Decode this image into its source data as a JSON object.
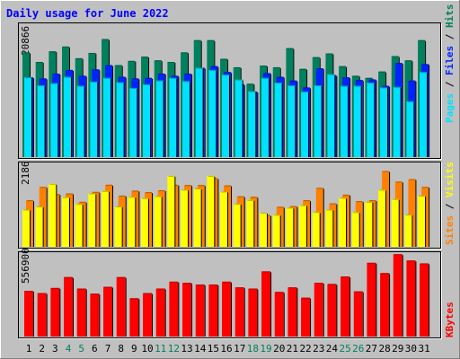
{
  "chart_data": [
    {
      "type": "bar",
      "title": "Daily usage for June 2022",
      "categories": [
        "1",
        "2",
        "3",
        "4",
        "5",
        "6",
        "7",
        "8",
        "9",
        "10",
        "11",
        "12",
        "13",
        "14",
        "15",
        "16",
        "17",
        "18",
        "19",
        "20",
        "21",
        "22",
        "23",
        "24",
        "25",
        "26",
        "27",
        "28",
        "29",
        "30",
        "31"
      ],
      "weekend_days": [
        "4",
        "5",
        "11",
        "12",
        "18",
        "19",
        "25",
        "26"
      ],
      "y_tick_label": "20866",
      "ylim": [
        0,
        25000
      ],
      "series": [
        {
          "name": "Hits",
          "color": "#00805c",
          "values": [
            19700,
            17900,
            19900,
            20800,
            18600,
            19600,
            22200,
            17300,
            18100,
            18900,
            18200,
            17900,
            19700,
            22000,
            22000,
            18500,
            16900,
            13800,
            17200,
            16900,
            20500,
            16600,
            18800,
            19500,
            17100,
            15300,
            14900,
            16100,
            19000,
            18200,
            22000
          ]
        },
        {
          "name": "Files",
          "color": "#0024ff",
          "values": [
            15000,
            14800,
            15700,
            16400,
            15300,
            16500,
            17300,
            15100,
            14800,
            14900,
            15700,
            15300,
            15700,
            16800,
            17100,
            16000,
            13700,
            12300,
            15800,
            15100,
            14400,
            13100,
            16700,
            15400,
            15000,
            14500,
            14600,
            13400,
            17700,
            14400,
            17500
          ]
        },
        {
          "name": "Pages",
          "color": "#00e0ff",
          "values": [
            15000,
            13500,
            13900,
            15100,
            13400,
            14200,
            14900,
            14100,
            13000,
            13700,
            14400,
            14900,
            14300,
            16800,
            16400,
            15500,
            14600,
            12400,
            14900,
            14000,
            13500,
            12300,
            13500,
            15600,
            13400,
            13400,
            14000,
            13100,
            13200,
            10500,
            16000
          ]
        }
      ]
    },
    {
      "type": "bar",
      "y_tick_label": "2186",
      "ylim": [
        0,
        2690
      ],
      "series": [
        {
          "name": "Visits",
          "color": "#ffff00",
          "values": [
            1200,
            1300,
            2030,
            1600,
            1380,
            1720,
            1800,
            1300,
            1610,
            1570,
            1630,
            2290,
            1840,
            1880,
            2290,
            1780,
            1390,
            1510,
            1100,
            1030,
            1260,
            1340,
            1120,
            1200,
            1580,
            1120,
            1450,
            1840,
            1540,
            1040,
            1650
          ]
        },
        {
          "name": "Sites",
          "color": "#ff8000",
          "values": [
            1500,
            1930,
            1700,
            1720,
            1450,
            1770,
            2000,
            1650,
            1810,
            1760,
            1820,
            2000,
            1990,
            1990,
            2210,
            1980,
            1630,
            1610,
            1020,
            1290,
            1310,
            1500,
            1900,
            1400,
            1680,
            1470,
            1500,
            2440,
            2100,
            2180,
            1930
          ]
        }
      ]
    },
    {
      "type": "bar",
      "y_tick_label": "556900",
      "ylim": [
        0,
        730000
      ],
      "series": [
        {
          "name": "KBytes",
          "color": "#ff0000",
          "values": [
            400000,
            380000,
            425000,
            520000,
            420000,
            375000,
            435000,
            520000,
            335000,
            380000,
            420000,
            480000,
            470000,
            455000,
            455000,
            480000,
            430000,
            420000,
            570000,
            390000,
            430000,
            340000,
            470000,
            460000,
            525000,
            395000,
            645000,
            555000,
            720000,
            665000,
            640000
          ]
        }
      ]
    }
  ],
  "legend": {
    "top_right": [
      {
        "text": "Pages",
        "color": "#00e0ff"
      },
      {
        "text": "Files",
        "color": "#0024ff"
      },
      {
        "text": "Hits",
        "color": "#00805c"
      }
    ],
    "mid_right": [
      {
        "text": "Sites",
        "color": "#ff8000"
      },
      {
        "text": "Visits",
        "color": "#ffff00"
      }
    ],
    "bottom_right": [
      {
        "text": "KBytes",
        "color": "#ff0000"
      }
    ]
  },
  "colors": {
    "background": "#c0c0c0",
    "title": "#0000ff",
    "day_label": "#000000",
    "weekend_label": "#00805c"
  }
}
